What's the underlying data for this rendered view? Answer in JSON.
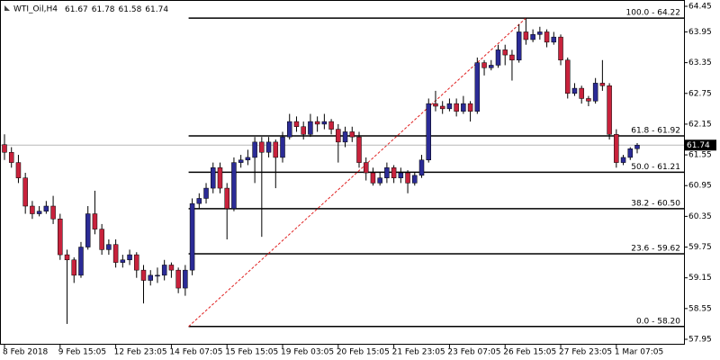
{
  "chart_data": {
    "type": "candlestick",
    "title": "WTI_Oil,H4",
    "up_color": "#2b2b96",
    "down_color": "#c8223c",
    "fib_color": "#000000",
    "trend_color": "#e02020",
    "price_line_color": "#b8b8b8",
    "ylim": [
      57.95,
      64.45
    ],
    "yticks": [
      {
        "value": 64.45,
        "label": "64.45"
      },
      {
        "value": 63.95,
        "label": "63.95"
      },
      {
        "value": 63.35,
        "label": "63.35"
      },
      {
        "value": 62.75,
        "label": "62.75"
      },
      {
        "value": 62.15,
        "label": "62.15"
      },
      {
        "value": 61.55,
        "label": "61.55"
      },
      {
        "value": 60.95,
        "label": "60.95"
      },
      {
        "value": 60.35,
        "label": "60.35"
      },
      {
        "value": 59.75,
        "label": "59.75"
      },
      {
        "value": 59.15,
        "label": "59.15"
      },
      {
        "value": 58.55,
        "label": "58.55"
      },
      {
        "value": 57.95,
        "label": "57.95"
      }
    ],
    "x": [
      "8 Feb 2018",
      null,
      null,
      null,
      null,
      null,
      null,
      null,
      "9 Feb 15:05",
      null,
      null,
      null,
      null,
      null,
      null,
      null,
      "12 Feb 23:05",
      null,
      null,
      null,
      null,
      null,
      null,
      null,
      "14 Feb 07:05",
      null,
      null,
      null,
      null,
      null,
      null,
      null,
      "15 Feb 15:05",
      null,
      null,
      null,
      null,
      null,
      null,
      null,
      "19 Feb 03:05",
      null,
      null,
      null,
      null,
      null,
      null,
      null,
      "20 Feb 15:05",
      null,
      null,
      null,
      null,
      null,
      null,
      null,
      "21 Feb 23:05",
      null,
      null,
      null,
      null,
      null,
      null,
      null,
      "23 Feb 07:05",
      null,
      null,
      null,
      null,
      null,
      null,
      null,
      "26 Feb 15:05",
      null,
      null,
      null,
      null,
      null,
      null,
      null,
      "27 Feb 23:05",
      null,
      null,
      null,
      null,
      null,
      null,
      null,
      "1 Mar 07:05",
      null,
      null,
      null
    ],
    "ohlc": [
      [
        61.75,
        61.95,
        61.45,
        61.6
      ],
      [
        61.6,
        61.7,
        61.3,
        61.4
      ],
      [
        61.4,
        61.55,
        61.0,
        61.1
      ],
      [
        61.1,
        61.2,
        60.4,
        60.55
      ],
      [
        60.55,
        60.65,
        60.3,
        60.4
      ],
      [
        60.4,
        60.55,
        60.35,
        60.45
      ],
      [
        60.45,
        60.65,
        60.4,
        60.55
      ],
      [
        60.55,
        60.75,
        60.2,
        60.3
      ],
      [
        60.3,
        60.4,
        59.5,
        59.6
      ],
      [
        59.6,
        59.7,
        58.25,
        59.5
      ],
      [
        59.5,
        59.55,
        59.05,
        59.2
      ],
      [
        59.2,
        59.85,
        59.15,
        59.75
      ],
      [
        59.75,
        60.55,
        59.7,
        60.4
      ],
      [
        60.4,
        60.85,
        60.0,
        60.1
      ],
      [
        60.1,
        60.2,
        59.6,
        59.7
      ],
      [
        59.7,
        59.9,
        59.6,
        59.8
      ],
      [
        59.8,
        59.9,
        59.35,
        59.45
      ],
      [
        59.45,
        59.6,
        59.35,
        59.5
      ],
      [
        59.5,
        59.7,
        59.4,
        59.6
      ],
      [
        59.6,
        59.65,
        59.15,
        59.3
      ],
      [
        59.3,
        59.4,
        58.65,
        59.1
      ],
      [
        59.1,
        59.3,
        59.0,
        59.2
      ],
      [
        59.2,
        59.35,
        59.05,
        59.2
      ],
      [
        59.2,
        59.5,
        59.1,
        59.4
      ],
      [
        59.4,
        59.45,
        59.15,
        59.3
      ],
      [
        59.3,
        59.35,
        58.85,
        58.95
      ],
      [
        58.95,
        59.4,
        58.8,
        59.3
      ],
      [
        59.3,
        60.7,
        59.2,
        60.6
      ],
      [
        60.6,
        60.8,
        60.5,
        60.7
      ],
      [
        60.7,
        61.0,
        60.6,
        60.9
      ],
      [
        60.9,
        61.4,
        60.8,
        61.3
      ],
      [
        61.3,
        61.4,
        60.8,
        60.9
      ],
      [
        60.9,
        61.0,
        59.9,
        60.5
      ],
      [
        60.5,
        61.5,
        60.45,
        61.4
      ],
      [
        61.4,
        61.55,
        61.3,
        61.45
      ],
      [
        61.45,
        61.65,
        61.35,
        61.5
      ],
      [
        61.5,
        61.9,
        61.0,
        61.8
      ],
      [
        61.8,
        61.9,
        59.95,
        61.6
      ],
      [
        61.6,
        61.9,
        61.5,
        61.8
      ],
      [
        61.8,
        61.85,
        60.9,
        61.5
      ],
      [
        61.5,
        62.0,
        61.4,
        61.9
      ],
      [
        61.9,
        62.35,
        61.85,
        62.2
      ],
      [
        62.2,
        62.3,
        62.0,
        62.1
      ],
      [
        62.1,
        62.2,
        61.85,
        61.95
      ],
      [
        61.95,
        62.35,
        61.9,
        62.2
      ],
      [
        62.2,
        62.3,
        62.0,
        62.15
      ],
      [
        62.15,
        62.35,
        62.05,
        62.2
      ],
      [
        62.2,
        62.25,
        61.95,
        62.05
      ],
      [
        62.05,
        62.15,
        61.4,
        61.8
      ],
      [
        61.8,
        62.1,
        61.7,
        62.0
      ],
      [
        62.0,
        62.1,
        61.8,
        61.9
      ],
      [
        61.9,
        62.0,
        61.3,
        61.4
      ],
      [
        61.4,
        61.5,
        61.05,
        61.2
      ],
      [
        61.2,
        61.3,
        60.95,
        61.0
      ],
      [
        61.0,
        61.2,
        60.95,
        61.1
      ],
      [
        61.1,
        61.4,
        61.0,
        61.3
      ],
      [
        61.3,
        61.35,
        61.0,
        61.1
      ],
      [
        61.1,
        61.3,
        61.0,
        61.2
      ],
      [
        61.2,
        61.25,
        60.8,
        61.0
      ],
      [
        61.0,
        61.2,
        60.95,
        61.15
      ],
      [
        61.15,
        61.55,
        61.1,
        61.45
      ],
      [
        61.45,
        62.65,
        61.4,
        62.55
      ],
      [
        62.55,
        62.8,
        62.4,
        62.5
      ],
      [
        62.5,
        62.6,
        62.35,
        62.45
      ],
      [
        62.45,
        62.65,
        62.4,
        62.55
      ],
      [
        62.55,
        62.65,
        62.3,
        62.4
      ],
      [
        62.4,
        62.7,
        62.35,
        62.55
      ],
      [
        62.55,
        62.6,
        62.2,
        62.4
      ],
      [
        62.4,
        63.45,
        62.35,
        63.35
      ],
      [
        63.35,
        63.4,
        63.1,
        63.25
      ],
      [
        63.25,
        63.4,
        63.2,
        63.3
      ],
      [
        63.3,
        63.7,
        63.25,
        63.6
      ],
      [
        63.6,
        63.7,
        63.3,
        63.5
      ],
      [
        63.5,
        63.6,
        63.0,
        63.4
      ],
      [
        63.4,
        64.1,
        63.35,
        63.95
      ],
      [
        63.95,
        64.22,
        63.7,
        63.8
      ],
      [
        63.8,
        64.0,
        63.75,
        63.9
      ],
      [
        63.9,
        64.05,
        63.8,
        63.95
      ],
      [
        63.95,
        64.0,
        63.65,
        63.75
      ],
      [
        63.75,
        63.95,
        63.7,
        63.85
      ],
      [
        63.85,
        63.9,
        63.3,
        63.4
      ],
      [
        63.4,
        63.45,
        62.65,
        62.75
      ],
      [
        62.75,
        62.95,
        62.7,
        62.85
      ],
      [
        62.85,
        62.9,
        62.55,
        62.65
      ],
      [
        62.65,
        62.7,
        62.5,
        62.6
      ],
      [
        62.6,
        63.05,
        62.55,
        62.95
      ],
      [
        62.95,
        63.4,
        62.8,
        62.9
      ],
      [
        62.9,
        62.95,
        61.85,
        61.95
      ],
      [
        61.95,
        62.05,
        61.3,
        61.4
      ],
      [
        61.4,
        61.55,
        61.35,
        61.5
      ],
      [
        61.5,
        61.7,
        61.45,
        61.67
      ],
      [
        61.67,
        61.78,
        61.58,
        61.74
      ]
    ],
    "fib_levels": [
      {
        "value": 64.22,
        "label": "100.0 - 64.22"
      },
      {
        "value": 61.92,
        "label": "61.8 - 61.92"
      },
      {
        "value": 61.21,
        "label": "50.0 - 61.21"
      },
      {
        "value": 60.5,
        "label": "38.2 - 60.50"
      },
      {
        "value": 59.62,
        "label": "23.6 - 59.62"
      },
      {
        "value": 58.2,
        "label": "0.0 - 58.20"
      }
    ]
  }
}
